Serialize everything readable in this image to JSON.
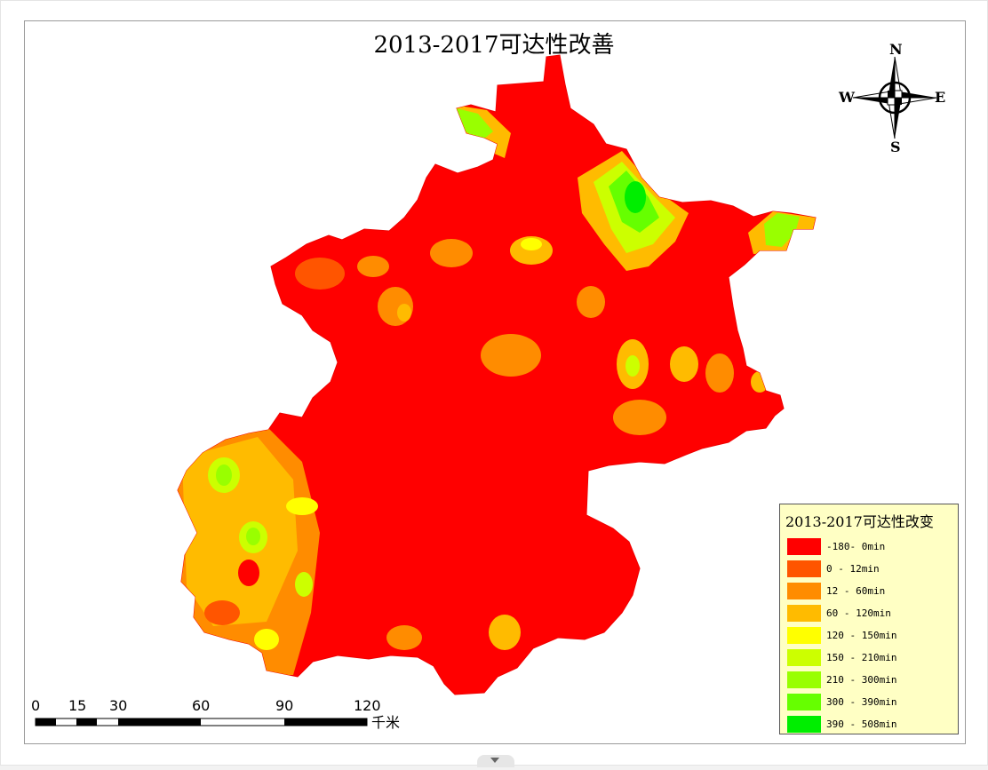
{
  "map": {
    "title": "2013-2017可达性改善"
  },
  "compass": {
    "north": "N",
    "south": "S",
    "east": "E",
    "west": "W",
    "icon": "compass-rose-icon"
  },
  "legend": {
    "title": "2013-2017可达性改变",
    "items": [
      {
        "label": "-180- 0min",
        "color": "#ff0000"
      },
      {
        "label": "0 - 12min",
        "color": "#ff5500"
      },
      {
        "label": "12 - 60min",
        "color": "#ff8c00"
      },
      {
        "label": "60 - 120min",
        "color": "#ffbb00"
      },
      {
        "label": "120 - 150min",
        "color": "#ffff00"
      },
      {
        "label": "150 - 210min",
        "color": "#ccff00"
      },
      {
        "label": "210 - 300min",
        "color": "#99ff00"
      },
      {
        "label": "300 - 390min",
        "color": "#66ff00"
      },
      {
        "label": "390 - 508min",
        "color": "#00ee00"
      }
    ]
  },
  "scale_bar": {
    "ticks": [
      "0",
      "15",
      "30",
      "60",
      "90",
      "120"
    ],
    "unit": "千米"
  },
  "colors": {
    "region_base": "#ff0000",
    "background": "#ffffff",
    "legend_background": "#ffffc4"
  }
}
